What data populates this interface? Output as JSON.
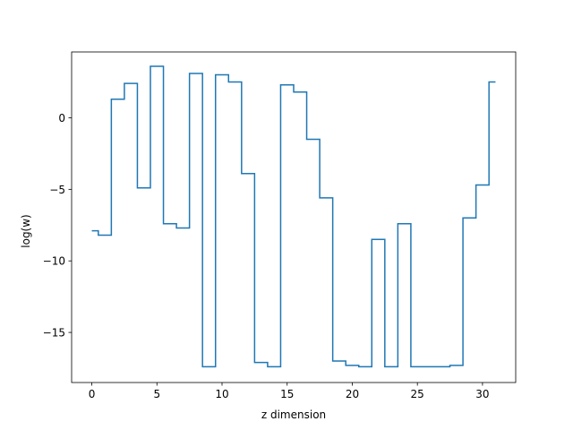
{
  "chart_data": {
    "type": "line",
    "drawstyle": "steps-mid",
    "title": "",
    "xlabel": "z dimension",
    "ylabel": "log(w)",
    "xlim": [
      -1.55,
      32.55
    ],
    "ylim": [
      -18.5,
      4.6
    ],
    "xticks": [
      0,
      5,
      10,
      15,
      20,
      25,
      30
    ],
    "yticks": [
      -15,
      -10,
      -5,
      0
    ],
    "ytick_labels": [
      "−15",
      "−10",
      "−5",
      "0"
    ],
    "grid": false,
    "color": "#1f77b4",
    "series": [
      {
        "x": [
          0,
          1,
          2,
          3,
          4,
          5,
          6,
          7,
          8,
          9,
          10,
          11,
          12,
          13,
          14,
          15,
          16,
          17,
          18,
          19,
          20,
          21,
          22,
          23,
          24,
          25,
          26,
          27,
          28,
          29,
          30,
          31
        ],
        "y": [
          -7.9,
          -8.2,
          1.3,
          2.4,
          -4.9,
          3.6,
          -7.4,
          -7.7,
          3.1,
          -17.4,
          3.0,
          2.5,
          -3.9,
          -17.1,
          -17.4,
          2.3,
          1.8,
          -1.5,
          -5.6,
          -17.0,
          -17.3,
          -17.4,
          -8.5,
          -17.4,
          -7.4,
          -17.4,
          -17.4,
          -17.4,
          -17.3,
          -7.0,
          -4.7,
          2.5
        ]
      }
    ]
  }
}
